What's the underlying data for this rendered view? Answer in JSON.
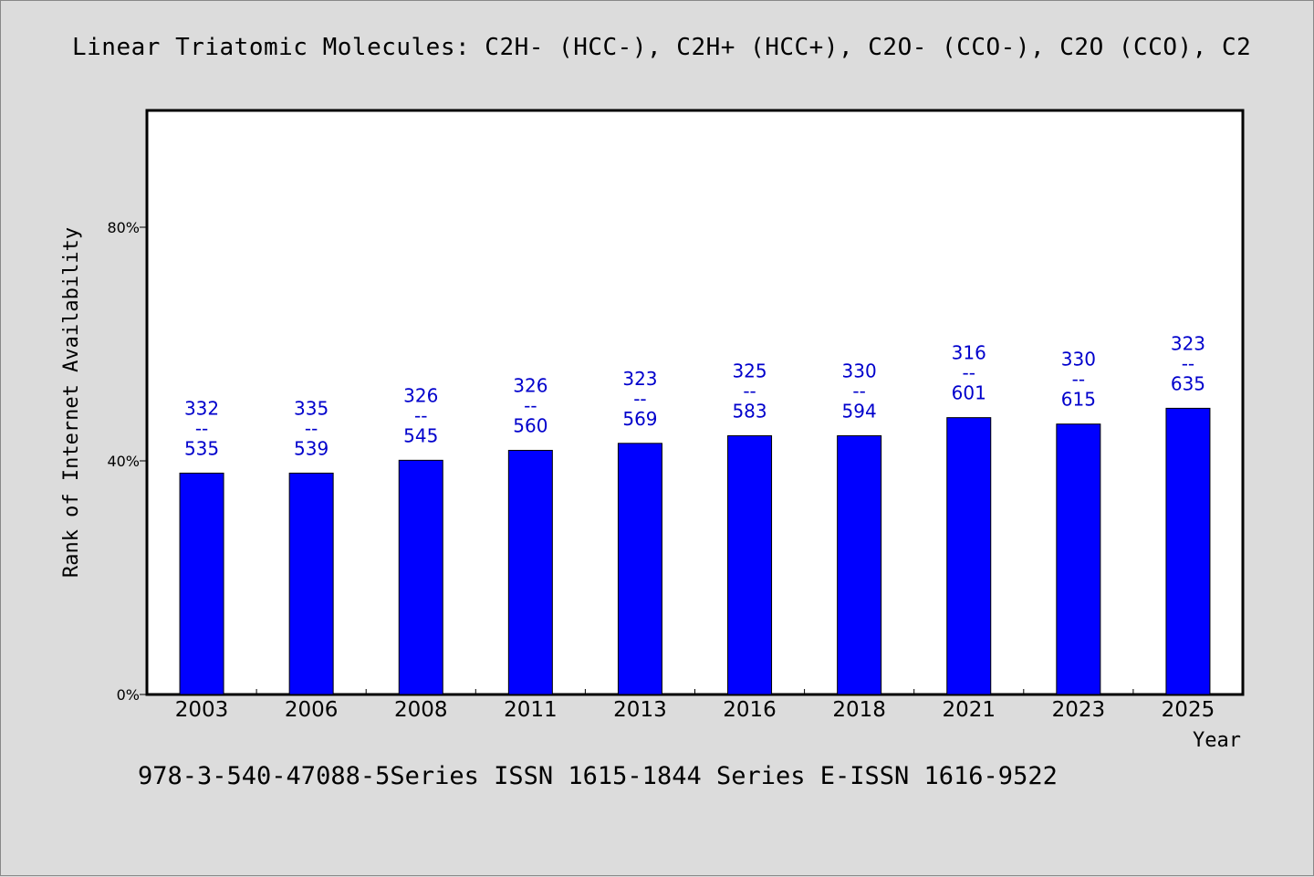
{
  "title": "Linear Triatomic Molecules: C2H- (HCC-), C2H+ (HCC+), C2O- (CCO-), C2O (CCO), C2",
  "footer": "978-3-540-47088-5Series ISSN 1615-1844 Series E-ISSN 1616-9522",
  "colors": {
    "background": "#dcdcdc",
    "plot_bg": "#ffffff",
    "bar": "#0000ff",
    "label": "#0000cc"
  },
  "chart_data": {
    "type": "bar",
    "title": "Linear Triatomic Molecules: C2H- (HCC-), C2H+ (HCC+), C2O- (CCO-), C2O (CCO), C2",
    "xlabel": "Year",
    "ylabel": "Rank of Internet Availability",
    "ylim": [
      0,
      1
    ],
    "yticks": [
      0,
      0.4,
      0.8
    ],
    "ytick_labels": [
      "0%",
      "40%",
      "80%"
    ],
    "grid": false,
    "categories": [
      "2003",
      "2006",
      "2008",
      "2011",
      "2013",
      "2016",
      "2018",
      "2021",
      "2023",
      "2025"
    ],
    "values": [
      0.379,
      0.379,
      0.401,
      0.418,
      0.43,
      0.443,
      0.443,
      0.474,
      0.463,
      0.49
    ],
    "data_labels": [
      [
        "332",
        "--",
        "535"
      ],
      [
        "335",
        "--",
        "539"
      ],
      [
        "326",
        "--",
        "545"
      ],
      [
        "326",
        "--",
        "560"
      ],
      [
        "323",
        "--",
        "569"
      ],
      [
        "325",
        "--",
        "583"
      ],
      [
        "330",
        "--",
        "594"
      ],
      [
        "316",
        "--",
        "601"
      ],
      [
        "330",
        "--",
        "615"
      ],
      [
        "323",
        "--",
        "635"
      ]
    ]
  }
}
